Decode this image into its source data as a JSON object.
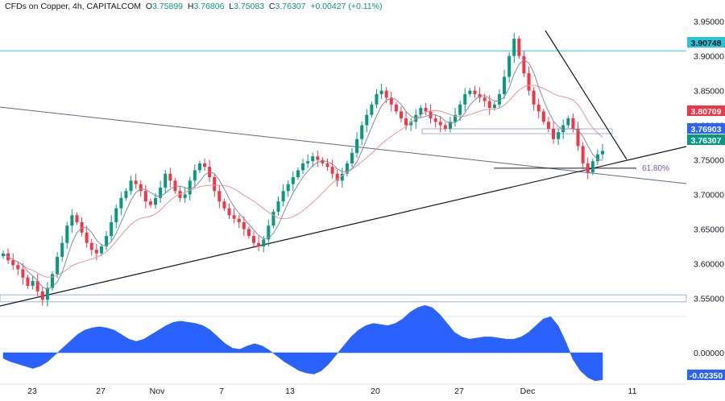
{
  "header": {
    "title": "CFDs on Copper, 4h, CAPITALCOM",
    "open_label": "O",
    "open": "3.75899",
    "high_label": "H",
    "high": "3.76806",
    "low_label": "L",
    "low": "3.75083",
    "close_label": "C",
    "close": "3.76307",
    "change": "+0.00427 (+0.11%)"
  },
  "price_tags": [
    {
      "text": "3.90748",
      "value": 3.90748,
      "color": "#26c6da",
      "text_color": "#131722"
    },
    {
      "text": "3.80709",
      "value": 3.80709,
      "color": "#f23645",
      "text_color": "#ffffff"
    },
    {
      "text": "3.76903",
      "value": 3.76903,
      "color": "#2962ff",
      "text_color": "#ffffff"
    },
    {
      "text": "3.76307",
      "value": 3.76307,
      "color": "#089981",
      "text_color": "#ffffff"
    },
    {
      "text": "-0.02350",
      "value": -0.0235,
      "color": "#2962ff",
      "text_color": "#ffffff"
    }
  ],
  "fib_label": "61.80%",
  "colors": {
    "up": "#089981",
    "down": "#f23645",
    "ma_fast": "#7e8ea5",
    "ma_slow": "#e8959b",
    "hline": "#26c6da",
    "trend": "#131722",
    "channel": "#5b6b86",
    "osc": "#2962ff"
  },
  "chart_data": {
    "type": "candlestick",
    "interval": "4h",
    "price_axis": {
      "ticks": [
        "3.95000",
        "3.90000",
        "3.85000",
        "3.80000",
        "3.75000",
        "3.70000",
        "3.65000",
        "3.60000",
        "3.55000"
      ],
      "range": [
        3.525,
        3.96
      ]
    },
    "oscillator_axis": {
      "ticks": [
        "0.00000"
      ],
      "value": -0.0235
    },
    "time_axis": {
      "ticks": [
        "23",
        "27",
        "Nov",
        "7",
        "13",
        "20",
        "27",
        "Dec",
        "11"
      ]
    },
    "levels": {
      "horizontal": 3.90748,
      "zone_low": 3.545,
      "zone_high": 3.555,
      "fib_618": 3.738
    },
    "closes": [
      3.615,
      3.605,
      3.598,
      3.592,
      3.58,
      3.568,
      3.575,
      3.56,
      3.548,
      3.565,
      3.585,
      3.61,
      3.63,
      3.655,
      3.67,
      3.66,
      3.645,
      3.63,
      3.62,
      3.615,
      3.625,
      3.64,
      3.66,
      3.68,
      3.695,
      3.705,
      3.72,
      3.715,
      3.705,
      3.69,
      3.685,
      3.695,
      3.71,
      3.73,
      3.72,
      3.705,
      3.695,
      3.7,
      3.72,
      3.735,
      3.745,
      3.74,
      3.725,
      3.705,
      3.69,
      3.68,
      3.67,
      3.665,
      3.66,
      3.65,
      3.64,
      3.63,
      3.625,
      3.635,
      3.655,
      3.675,
      3.69,
      3.705,
      3.715,
      3.725,
      3.735,
      3.745,
      3.748,
      3.755,
      3.75,
      3.745,
      3.74,
      3.73,
      3.72,
      3.73,
      3.745,
      3.76,
      3.78,
      3.8,
      3.815,
      3.83,
      3.845,
      3.85,
      3.84,
      3.83,
      3.82,
      3.81,
      3.8,
      3.805,
      3.815,
      3.825,
      3.82,
      3.81,
      3.805,
      3.8,
      3.795,
      3.805,
      3.815,
      3.83,
      3.845,
      3.85,
      3.845,
      3.84,
      3.835,
      3.825,
      3.83,
      3.845,
      3.87,
      3.9,
      3.925,
      3.9,
      3.875,
      3.85,
      3.83,
      3.82,
      3.805,
      3.795,
      3.78,
      3.79,
      3.8,
      3.81,
      3.795,
      3.77,
      3.745,
      3.732,
      3.748,
      3.758,
      3.763
    ],
    "oscillator": [
      -0.005,
      -0.008,
      -0.01,
      -0.012,
      -0.014,
      -0.012,
      -0.008,
      -0.002,
      0.004,
      0.01,
      0.016,
      0.02,
      0.022,
      0.023,
      0.022,
      0.02,
      0.016,
      0.012,
      0.01,
      0.012,
      0.016,
      0.02,
      0.024,
      0.027,
      0.028,
      0.027,
      0.026,
      0.024,
      0.02,
      0.014,
      0.008,
      0.004,
      0.003,
      0.006,
      0.008,
      0.006,
      0.002,
      -0.003,
      -0.008,
      -0.012,
      -0.016,
      -0.018,
      -0.019,
      -0.016,
      -0.01,
      -0.002,
      0.006,
      0.014,
      0.02,
      0.024,
      0.026,
      0.025,
      0.024,
      0.026,
      0.03,
      0.036,
      0.04,
      0.042,
      0.04,
      0.034,
      0.026,
      0.018,
      0.014,
      0.012,
      0.013,
      0.014,
      0.014,
      0.013,
      0.012,
      0.012,
      0.014,
      0.018,
      0.024,
      0.03,
      0.032,
      0.024,
      0.01,
      -0.006,
      -0.016,
      -0.022,
      -0.025,
      -0.024
    ]
  }
}
